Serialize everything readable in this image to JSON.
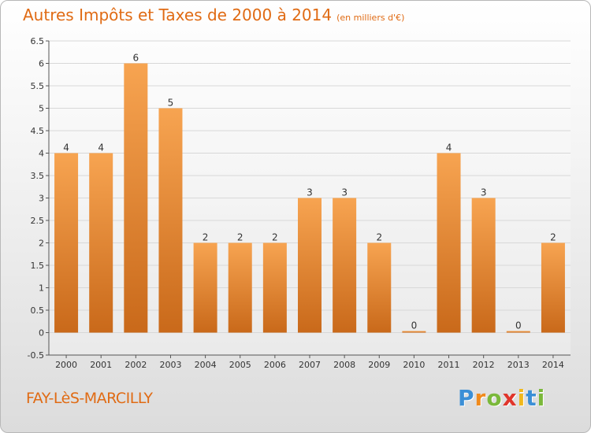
{
  "header": {
    "title": "Autres Impôts et Taxes de 2000 à 2014",
    "unit": "(en milliers d'€)"
  },
  "footer": {
    "place_name": "FAY-LèS-MARCILLY",
    "logo": {
      "letters": [
        "P",
        "r",
        "o",
        "x",
        "i",
        "t",
        "i"
      ],
      "colors": [
        "#3b8fd6",
        "#f08a1c",
        "#7ab83a",
        "#e0352b",
        "#f0b81c",
        "#3b8fd6",
        "#7ab83a"
      ]
    }
  },
  "colors": {
    "accent": "#e06b14",
    "bar_top": "#f7a451",
    "bar_bottom": "#c9691a",
    "grid": "#d8d8d8",
    "axis": "#555555"
  },
  "chart_data": {
    "type": "bar",
    "categories": [
      "2000",
      "2001",
      "2002",
      "2003",
      "2004",
      "2005",
      "2006",
      "2007",
      "2008",
      "2009",
      "2010",
      "2011",
      "2012",
      "2013",
      "2014"
    ],
    "values": [
      4,
      4,
      6,
      5,
      2,
      2,
      2,
      3,
      3,
      2,
      0,
      4,
      3,
      0,
      2
    ],
    "data_labels": [
      "4",
      "4",
      "6",
      "5",
      "2",
      "2",
      "2",
      "3",
      "3",
      "2",
      "0",
      "4",
      "3",
      "0",
      "2"
    ],
    "y_ticks": [
      "-0.5",
      "0",
      "0.5",
      "1",
      "1.5",
      "2",
      "2.5",
      "3",
      "3.5",
      "4",
      "4.5",
      "5",
      "5.5",
      "6",
      "6.5"
    ],
    "ylim": [
      -0.5,
      6.5
    ],
    "grid": true,
    "title": "Autres Impôts et Taxes de 2000 à 2014",
    "xlabel": "",
    "ylabel": ""
  }
}
